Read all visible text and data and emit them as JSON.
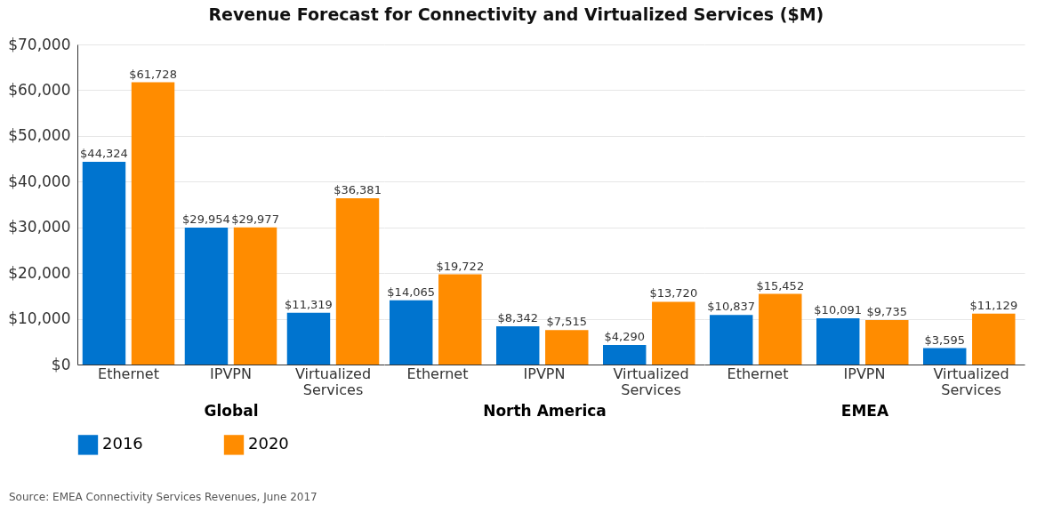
{
  "chart_data": [
    {
      "type": "bar",
      "title": "Revenue Forecast for Connectivity and Virtualized Services ($M)",
      "xlabel": "Global",
      "categories": [
        "Ethernet",
        "IPVPN",
        "Virtualized Services"
      ],
      "series": [
        {
          "name": "2016",
          "color": "#0074cf",
          "values": [
            44324,
            29954,
            11319
          ],
          "value_labels": [
            "$44,324",
            "$29,954",
            "$11,319"
          ]
        },
        {
          "name": "2020",
          "color": "#ff8c00",
          "values": [
            61728,
            29977,
            36381
          ],
          "value_labels": [
            "$61,728",
            "$29,977",
            "$36,381"
          ]
        }
      ],
      "ylim": [
        0,
        70000
      ],
      "yticks": [
        {
          "value": 0,
          "label": "$0"
        },
        {
          "value": 10000,
          "label": "$10,000"
        },
        {
          "value": 20000,
          "label": "$20,000"
        },
        {
          "value": 30000,
          "label": "$30,000"
        },
        {
          "value": 40000,
          "label": "$40,000"
        },
        {
          "value": 50000,
          "label": "$50,000"
        },
        {
          "value": 60000,
          "label": "$60,000"
        },
        {
          "value": 70000,
          "label": "$70,000"
        }
      ],
      "grid": "y",
      "legend": "bottom",
      "annotations": [
        "Source: EMEA Connectivity Services Revenues, June 2017"
      ]
    },
    {
      "type": "bar",
      "xlabel": "North America",
      "categories": [
        "Ethernet",
        "IPVPN",
        "Virtualized Services"
      ],
      "series": [
        {
          "name": "2016",
          "color": "#0074cf",
          "values": [
            14065,
            8342,
            4290
          ],
          "value_labels": [
            "$14,065",
            "$8,342",
            "$4,290"
          ]
        },
        {
          "name": "2020",
          "color": "#ff8c00",
          "values": [
            19722,
            7515,
            13720
          ],
          "value_labels": [
            "$19,722",
            "$7,515",
            "$13,720"
          ]
        }
      ],
      "ylim": [
        0,
        70000
      ],
      "yticks": [
        0,
        10000,
        20000,
        30000,
        40000,
        50000,
        60000,
        70000
      ],
      "grid": "y",
      "tick_labels": "x",
      "legend": "bottom"
    },
    {
      "type": "bar",
      "xlabel": "EMEA",
      "categories": [
        "Ethernet",
        "IPVPN",
        "Virtualized Services"
      ],
      "series": [
        {
          "name": "2016",
          "color": "#0074cf",
          "values": [
            10837,
            10091,
            3595
          ],
          "value_labels": [
            "$10,837",
            "$10,091",
            "$3,595"
          ]
        },
        {
          "name": "2020",
          "color": "#ff8c00",
          "values": [
            15452,
            9735,
            11129
          ],
          "value_labels": [
            "$15,452",
            "$9,735",
            "$11,129"
          ]
        }
      ],
      "ylim": [
        0,
        70000
      ],
      "yticks": [
        0,
        10000,
        20000,
        30000,
        40000,
        50000,
        60000,
        70000
      ],
      "grid": "y",
      "tick_labels": "x",
      "legend": "bottom"
    }
  ]
}
